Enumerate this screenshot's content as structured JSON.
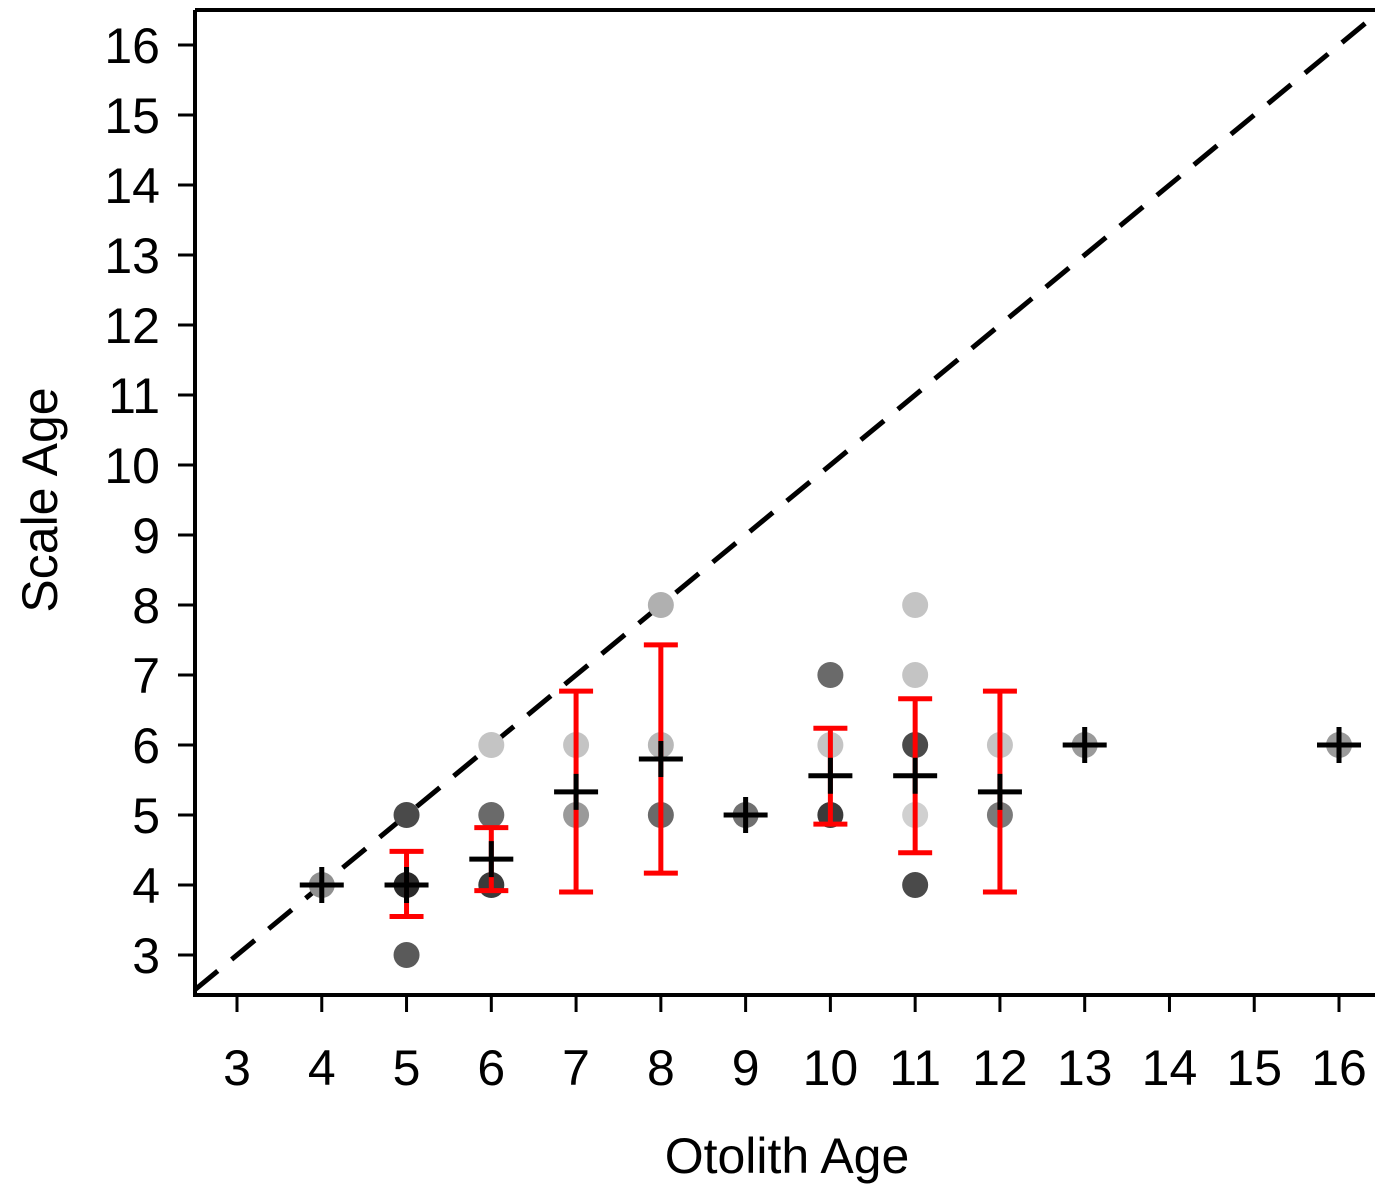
{
  "chart_data": {
    "type": "scatter",
    "title": "",
    "xlabel": "Otolith Age",
    "ylabel": "Scale Age",
    "xlim": [
      2.5,
      16.5
    ],
    "ylim": [
      2.4,
      16.6
    ],
    "x_ticks": [
      "3",
      "4",
      "5",
      "6",
      "7",
      "8",
      "9",
      "10",
      "11",
      "12",
      "13",
      "14",
      "15",
      "16"
    ],
    "y_ticks": [
      "3",
      "4",
      "5",
      "6",
      "7",
      "8",
      "9",
      "10",
      "11",
      "12",
      "13",
      "14",
      "15",
      "16"
    ],
    "reference_line": {
      "type": "1:1",
      "style": "dashed",
      "color": "#000000"
    },
    "points": [
      {
        "x": 4,
        "y": 4,
        "shade": "#909090"
      },
      {
        "x": 5,
        "y": 5,
        "shade": "#4a4a4a"
      },
      {
        "x": 5,
        "y": 4,
        "shade": "#2a2a2a"
      },
      {
        "x": 5,
        "y": 3,
        "shade": "#5a5a5a"
      },
      {
        "x": 6,
        "y": 6,
        "shade": "#c4c4c4"
      },
      {
        "x": 6,
        "y": 5,
        "shade": "#6a6a6a"
      },
      {
        "x": 6,
        "y": 4,
        "shade": "#3a3a3a"
      },
      {
        "x": 7,
        "y": 6,
        "shade": "#c4c4c4"
      },
      {
        "x": 7,
        "y": 5,
        "shade": "#9a9a9a"
      },
      {
        "x": 8,
        "y": 8,
        "shade": "#b0b0b0"
      },
      {
        "x": 8,
        "y": 6,
        "shade": "#b8b8b8"
      },
      {
        "x": 8,
        "y": 5,
        "shade": "#6a6a6a"
      },
      {
        "x": 9,
        "y": 5,
        "shade": "#707070"
      },
      {
        "x": 10,
        "y": 7,
        "shade": "#6a6a6a"
      },
      {
        "x": 10,
        "y": 6,
        "shade": "#c4c4c4"
      },
      {
        "x": 10,
        "y": 5,
        "shade": "#3a3a3a"
      },
      {
        "x": 11,
        "y": 8,
        "shade": "#c4c4c4"
      },
      {
        "x": 11,
        "y": 7,
        "shade": "#c4c4c4"
      },
      {
        "x": 11,
        "y": 6,
        "shade": "#4a4a4a"
      },
      {
        "x": 11,
        "y": 5,
        "shade": "#d0d0d0"
      },
      {
        "x": 11,
        "y": 4,
        "shade": "#4a4a4a"
      },
      {
        "x": 12,
        "y": 6,
        "shade": "#c4c4c4"
      },
      {
        "x": 12,
        "y": 5,
        "shade": "#7a7a7a"
      },
      {
        "x": 13,
        "y": 6,
        "shade": "#9a9a9a"
      },
      {
        "x": 16,
        "y": 6,
        "shade": "#9a9a9a"
      }
    ],
    "means": [
      {
        "x": 4,
        "y": 4.0
      },
      {
        "x": 5,
        "y": 4.0,
        "ci": [
          3.55,
          4.48
        ]
      },
      {
        "x": 6,
        "y": 4.37,
        "ci": [
          3.92,
          4.82
        ]
      },
      {
        "x": 7,
        "y": 5.33,
        "ci": [
          3.9,
          6.77
        ]
      },
      {
        "x": 8,
        "y": 5.8,
        "ci": [
          4.17,
          7.43
        ]
      },
      {
        "x": 9,
        "y": 5.0
      },
      {
        "x": 10,
        "y": 5.56,
        "ci": [
          4.87,
          6.24
        ]
      },
      {
        "x": 11,
        "y": 5.56,
        "ci": [
          4.46,
          6.66
        ]
      },
      {
        "x": 12,
        "y": 5.33,
        "ci": [
          3.9,
          6.77
        ]
      },
      {
        "x": 13,
        "y": 6.0
      },
      {
        "x": 16,
        "y": 6.0
      }
    ],
    "colors": {
      "mean_marker": "#000000",
      "error_bar": "#ff0000",
      "axis": "#000000"
    }
  }
}
